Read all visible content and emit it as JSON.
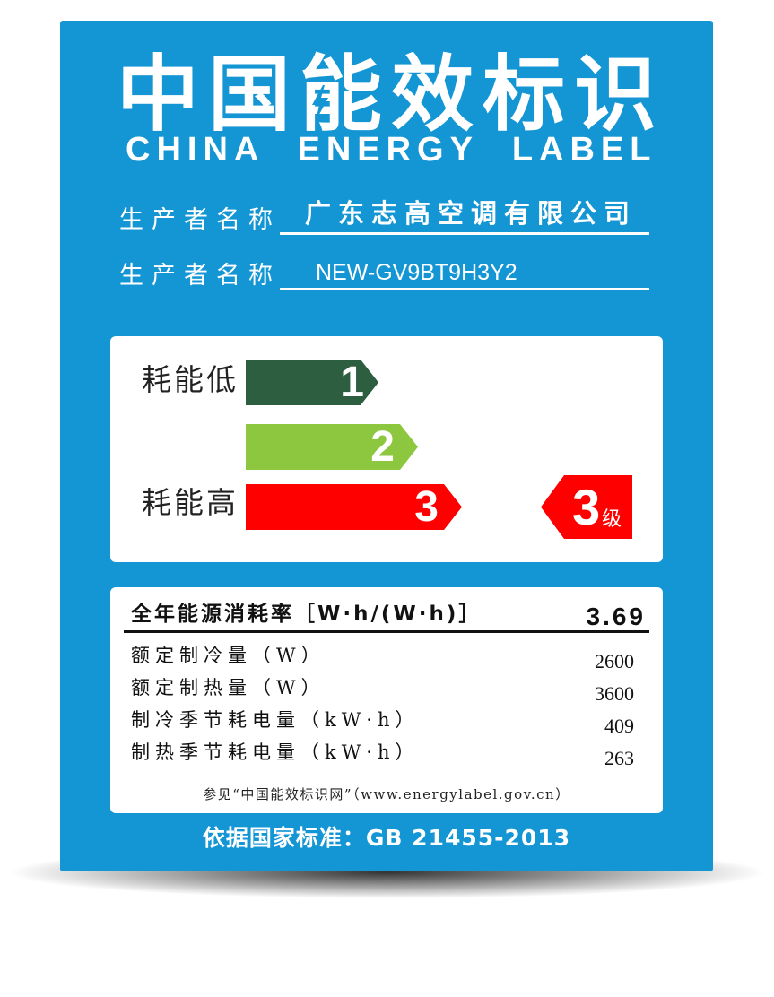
{
  "colors": {
    "panel": "#1596d4",
    "grade_1": "#2d5e3f",
    "grade_2": "#8dc63f",
    "grade_3": "#ff0000",
    "indicator": "#ff0000"
  },
  "header": {
    "title_cn": "中国能效标识",
    "title_en": "CHINA ENERGY LABEL"
  },
  "info": {
    "rows": [
      {
        "label": "生产者名称",
        "value": "广东志高空调有限公司"
      },
      {
        "label": "生产者名称",
        "value": "NEW-GV9BT9H3Y2"
      }
    ]
  },
  "grades": {
    "low_label": "耗能低",
    "high_label": "耗能高",
    "scale": [
      "1",
      "2",
      "3"
    ],
    "current": {
      "grade": "3",
      "unit": "级"
    }
  },
  "specs": {
    "headline": {
      "label": "全年能源消耗率［W·h/(W·h)］",
      "value": "3.69"
    },
    "rows": [
      {
        "label": "额定制冷量（W）",
        "value": "2600"
      },
      {
        "label": "额定制热量（W）",
        "value": "3600"
      },
      {
        "label": "制冷季节耗电量（kW·h）",
        "value": "409"
      },
      {
        "label": "制热季节耗电量（kW·h）",
        "value": "263"
      }
    ],
    "reference": "参见“中国能效标识网”（www.energylabel.gov.cn）"
  },
  "standard": "依据国家标准：GB 21455-2013"
}
